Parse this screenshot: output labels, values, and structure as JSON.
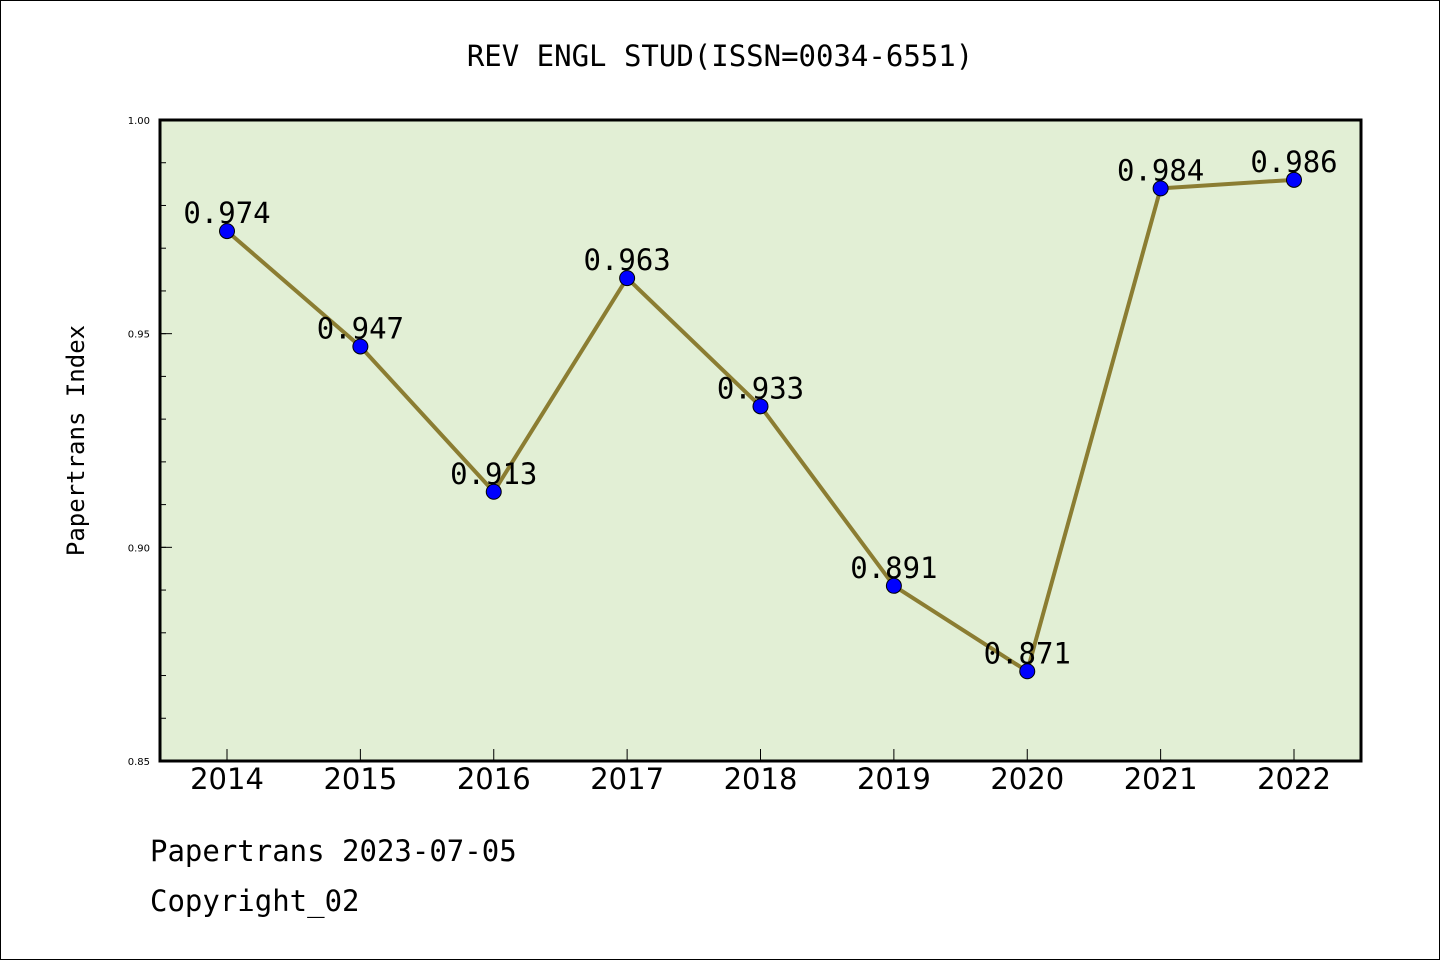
{
  "chart_data": {
    "type": "line",
    "title": "REV ENGL STUD(ISSN=0034-6551)",
    "ylabel": "Papertrans Index",
    "xlabel": "",
    "categories": [
      "2014",
      "2015",
      "2016",
      "2017",
      "2018",
      "2019",
      "2020",
      "2021",
      "2022"
    ],
    "values": [
      0.974,
      0.947,
      0.913,
      0.963,
      0.933,
      0.891,
      0.871,
      0.984,
      0.986
    ],
    "data_labels": [
      "0.974",
      "0.947",
      "0.913",
      "0.963",
      "0.933",
      "0.891",
      "0.871",
      "0.984",
      "0.986"
    ],
    "ylim": [
      0.85,
      1.0
    ],
    "y_ticks": [
      0.85,
      0.9,
      0.95,
      1.0
    ],
    "y_tick_labels": [
      "0.85",
      "0.90",
      "0.95",
      "1.00"
    ],
    "y_minor_step": 0.01,
    "grid": false,
    "colors": {
      "plot_background": "#e2efd5",
      "line": "#8b7d32",
      "marker": "#0000ff",
      "axis": "#000000"
    }
  },
  "footer": {
    "line1": "Papertrans 2023-07-05",
    "line2": "Copyright_02"
  }
}
